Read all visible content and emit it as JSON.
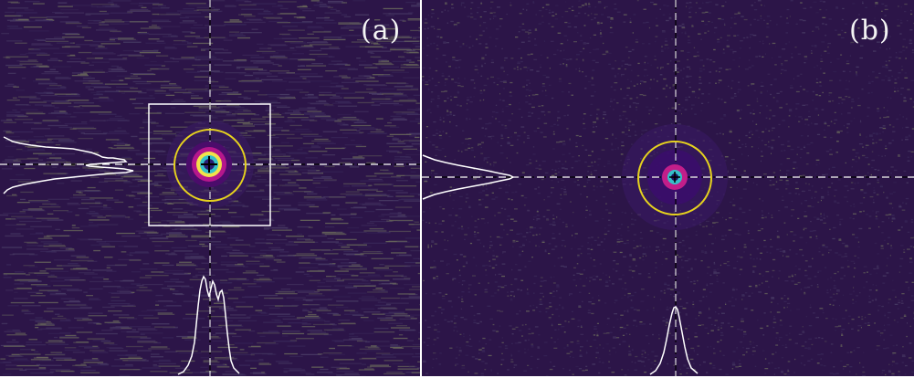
{
  "panels": [
    {
      "label": "(a)",
      "background_color": "#2c1548",
      "noise_colors": [
        "#6b6b5c",
        "#3a2a5a",
        "#4a3d66"
      ],
      "spot_colors": [
        "#4b0c6b",
        "#b5178c",
        "#f2e34a",
        "#34c1c9",
        "#2a1d73"
      ],
      "circle_color": "#e6d21e",
      "box_color": "#ffffff",
      "profile_color": "#ffffff"
    },
    {
      "label": "(b)",
      "background_color": "#2c1548",
      "noise_colors": [
        "#6b6b5c",
        "#3a2a5a",
        "#4a3d66"
      ],
      "spot_colors": [
        "#3a0d6b",
        "#c21e8a",
        "#34c1c9",
        "#1f1660"
      ],
      "circle_color": "#e6d21e",
      "profile_color": "#ffffff"
    }
  ]
}
